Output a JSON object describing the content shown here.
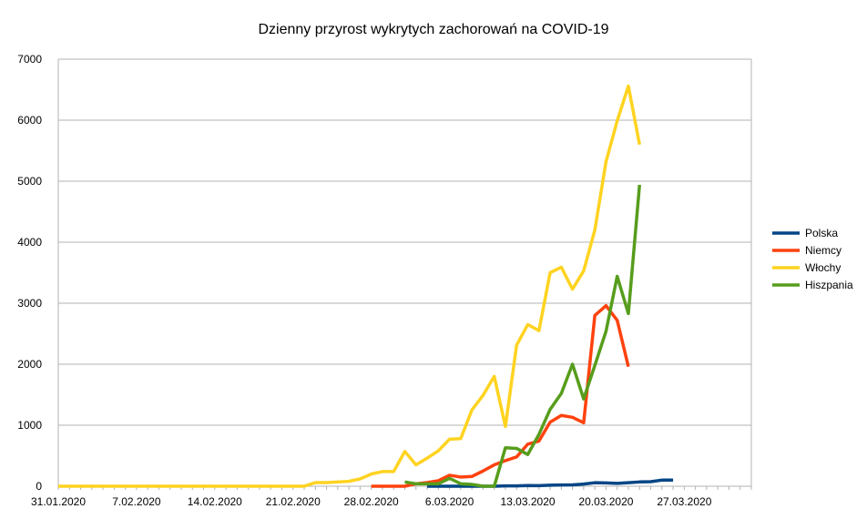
{
  "chart_data": {
    "type": "line",
    "title": "Dzienny przyrost wykrytych zachorowań na COVID-19",
    "xlabel": "",
    "ylabel": "",
    "ylim": [
      0,
      7000
    ],
    "yticks": [
      0,
      1000,
      2000,
      3000,
      4000,
      5000,
      6000,
      7000
    ],
    "xlim": [
      "2020-01-31",
      "2020-04-02"
    ],
    "xticks": [
      "31.01.2020",
      "7.02.2020",
      "14.02.2020",
      "21.02.2020",
      "28.02.2020",
      "6.03.2020",
      "13.03.2020",
      "20.03.2020",
      "27.03.2020"
    ],
    "grid": true,
    "legend": "right",
    "series": [
      {
        "name": "Polska",
        "color": "#004586",
        "start": "2020-03-04",
        "values": [
          0,
          0,
          0,
          0,
          0,
          0,
          0,
          5,
          6,
          11,
          10,
          17,
          21,
          22,
          35,
          57,
          54,
          46,
          57,
          70,
          74,
          100,
          100
        ]
      },
      {
        "name": "Niemcy",
        "color": "#ff420e",
        "start": "2020-02-28",
        "values": [
          0,
          0,
          0,
          0,
          40,
          60,
          90,
          180,
          150,
          160,
          250,
          350,
          420,
          480,
          690,
          740,
          1050,
          1160,
          1130,
          1040,
          2800,
          2960,
          2720,
          1960
        ]
      },
      {
        "name": "Włochy",
        "color": "#ffd320",
        "start": "2020-01-31",
        "values": [
          0,
          0,
          0,
          0,
          0,
          0,
          0,
          0,
          0,
          0,
          0,
          0,
          0,
          0,
          0,
          0,
          0,
          0,
          0,
          0,
          0,
          0,
          0,
          60,
          60,
          70,
          80,
          120,
          200,
          240,
          240,
          570,
          350,
          460,
          580,
          770,
          780,
          1250,
          1490,
          1800,
          980,
          2310,
          2650,
          2550,
          3500,
          3590,
          3230,
          3530,
          4200,
          5320,
          5990,
          6560,
          5600
        ]
      },
      {
        "name": "Hiszpania",
        "color": "#579d1c",
        "start": "2020-03-02",
        "values": [
          70,
          40,
          40,
          40,
          130,
          40,
          30,
          0,
          0,
          630,
          620,
          520,
          850,
          1260,
          1520,
          2000,
          1430,
          1980,
          2540,
          3440,
          2830,
          4940
        ]
      }
    ]
  }
}
